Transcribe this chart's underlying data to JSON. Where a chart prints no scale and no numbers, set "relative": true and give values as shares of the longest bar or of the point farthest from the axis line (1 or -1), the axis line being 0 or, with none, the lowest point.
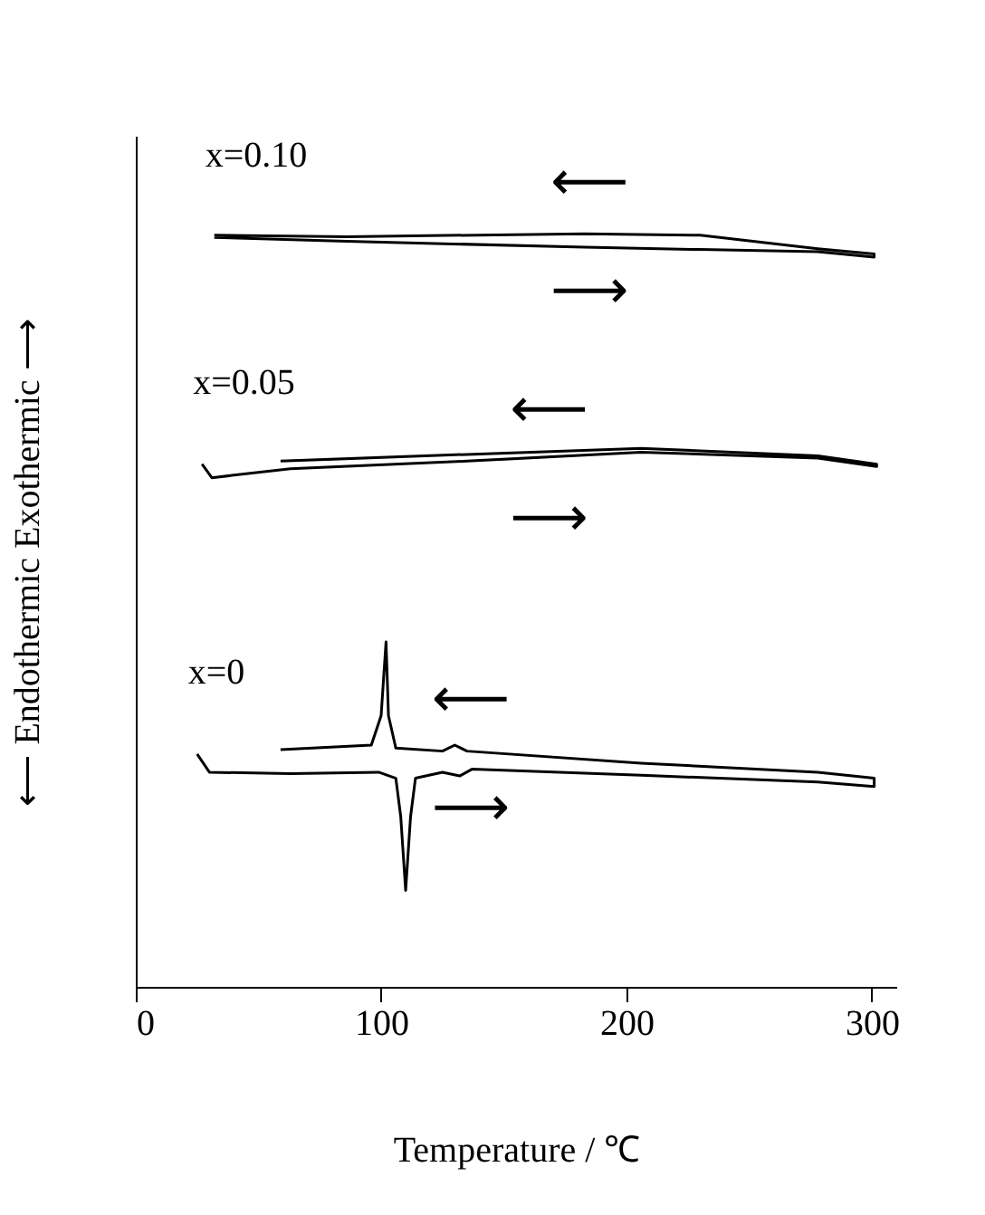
{
  "chart_data": {
    "type": "line",
    "relative": true,
    "xlabel": "Temperature / ℃",
    "ylabel": "⟵  Endothermic        Exothermic  ⟶",
    "xlim": [
      0,
      310
    ],
    "xticks": [
      0,
      100,
      200,
      300
    ],
    "marker": "none",
    "line_style": "solid",
    "series": [
      {
        "name": "x=0.10",
        "color": "#000000",
        "x": [
          32,
          86,
          183,
          230,
          278,
          301,
          301,
          278,
          230,
          183,
          86,
          32
        ],
        "values": [
          0.995,
          0.99,
          0.982,
          0.979,
          0.976,
          0.969,
          0.973,
          0.98,
          0.998,
          1.0,
          0.996,
          0.998
        ]
      },
      {
        "name": "x=0.05",
        "color": "#000000",
        "x": [
          27,
          31,
          63,
          135,
          206,
          278,
          302,
          302,
          278,
          206,
          135,
          59
        ],
        "values": [
          0.694,
          0.676,
          0.688,
          0.698,
          0.71,
          0.702,
          0.691,
          0.694,
          0.705,
          0.715,
          0.707,
          0.698
        ]
      },
      {
        "name": "x=0",
        "color": "#000000",
        "x": [
          25,
          30,
          63,
          99,
          106,
          108,
          110,
          112,
          114,
          125,
          132,
          137,
          206,
          278,
          301,
          301,
          278,
          206,
          135,
          130,
          125,
          106,
          103,
          102,
          100,
          96,
          59
        ],
        "values": [
          0.309,
          0.285,
          0.283,
          0.285,
          0.277,
          0.226,
          0.128,
          0.226,
          0.277,
          0.285,
          0.28,
          0.289,
          0.281,
          0.272,
          0.266,
          0.277,
          0.285,
          0.297,
          0.313,
          0.321,
          0.313,
          0.317,
          0.36,
          0.458,
          0.36,
          0.321,
          0.315
        ]
      }
    ],
    "annotations": [
      "⟵",
      "⟶",
      "⟵",
      "⟶",
      "⟵",
      "⟶"
    ]
  }
}
